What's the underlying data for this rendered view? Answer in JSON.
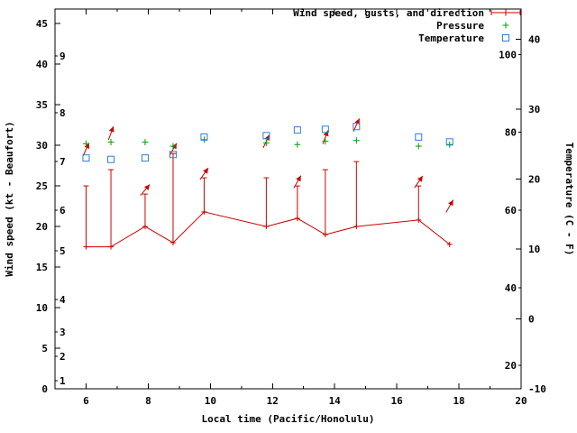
{
  "chart_data": {
    "type": "line",
    "title": "",
    "xlabel": "Local time (Pacific/Honolulu)",
    "ylabel_left": "Wind speed (kt - Beaufort)",
    "ylabel_right": "Temperature (C - F)",
    "legend_position": "top-right",
    "grid": false,
    "colors": {
      "wind": "#cc0000",
      "pressure": "#00a000",
      "temperature": "#2f7ed8",
      "axis": "#000000",
      "background": "#ffffff"
    },
    "legend": [
      {
        "label": "Wind speed, gusts, and direction",
        "series": "wind",
        "marker": "errorbar-plus"
      },
      {
        "label": "Pressure",
        "series": "pressure",
        "marker": "plus"
      },
      {
        "label": "Temperature",
        "series": "temperature",
        "marker": "square"
      }
    ],
    "xlim": [
      5,
      20
    ],
    "ylim_left": [
      0,
      46.8
    ],
    "ylim_right": [
      -10,
      44.3
    ],
    "x_major_ticks": [
      6,
      8,
      10,
      12,
      14,
      16,
      18,
      20
    ],
    "x_minor_ticks": [
      7,
      9,
      11,
      13,
      15,
      17,
      19
    ],
    "left_ticks": [
      0,
      5,
      10,
      15,
      20,
      25,
      30,
      35,
      40,
      45
    ],
    "right_ticks": [
      -10,
      0,
      10,
      20,
      30,
      40
    ],
    "beaufort_ticks": [
      {
        "label": "1",
        "kt": 1
      },
      {
        "label": "2",
        "kt": 4
      },
      {
        "label": "3",
        "kt": 7
      },
      {
        "label": "4",
        "kt": 11
      },
      {
        "label": "5",
        "kt": 17
      },
      {
        "label": "6",
        "kt": 22
      },
      {
        "label": "7",
        "kt": 28
      },
      {
        "label": "8",
        "kt": 34
      },
      {
        "label": "9",
        "kt": 41
      }
    ],
    "fahrenheit_ticks": [
      {
        "label": "20",
        "f": 20
      },
      {
        "label": "40",
        "f": 40
      },
      {
        "label": "60",
        "f": 60
      },
      {
        "label": "80",
        "f": 80
      },
      {
        "label": "100",
        "f": 100
      }
    ],
    "x": [
      6.0,
      6.8,
      7.9,
      8.8,
      9.8,
      11.8,
      12.8,
      13.7,
      14.7,
      16.7,
      17.7
    ],
    "wind_kt": [
      17.5,
      17.5,
      20.0,
      18.0,
      21.8,
      20.0,
      21.0,
      19.0,
      20.0,
      20.8,
      17.8
    ],
    "gust_kt": [
      25.0,
      27.0,
      24.0,
      29.0,
      26.0,
      26.0,
      25.0,
      27.0,
      28.0,
      25.0,
      18.0
    ],
    "pressure_inhg": [
      30.2,
      30.4,
      30.4,
      29.9,
      30.7,
      30.3,
      30.1,
      30.5,
      30.6,
      29.9,
      30.1
    ],
    "temperature_c": [
      23.0,
      22.8,
      23.0,
      23.5,
      26.0,
      26.2,
      27.0,
      27.1,
      27.5,
      26.0,
      25.3
    ],
    "direction_arrows": [
      {
        "x": 6.0,
        "kt": 29.5,
        "angle_deg": 25
      },
      {
        "x": 6.8,
        "kt": 31.5,
        "angle_deg": 20
      },
      {
        "x": 7.9,
        "kt": 24.5,
        "angle_deg": 40
      },
      {
        "x": 8.8,
        "kt": 29.5,
        "angle_deg": 30
      },
      {
        "x": 9.8,
        "kt": 26.5,
        "angle_deg": 35
      },
      {
        "x": 11.8,
        "kt": 30.5,
        "angle_deg": 25
      },
      {
        "x": 12.8,
        "kt": 25.5,
        "angle_deg": 30
      },
      {
        "x": 13.7,
        "kt": 31.0,
        "angle_deg": 20
      },
      {
        "x": 14.7,
        "kt": 32.5,
        "angle_deg": 25
      },
      {
        "x": 16.7,
        "kt": 25.5,
        "angle_deg": 35
      },
      {
        "x": 17.7,
        "kt": 22.5,
        "angle_deg": 30
      }
    ]
  }
}
